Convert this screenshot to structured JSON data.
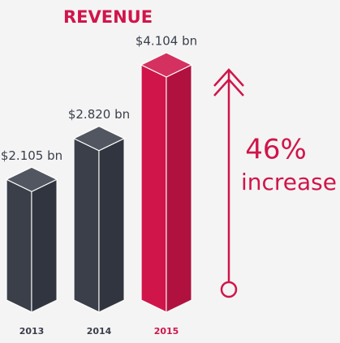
{
  "chart_data": {
    "type": "bar",
    "title": "REVENUE",
    "categories": [
      "2013",
      "2014",
      "2015"
    ],
    "values": [
      2.105,
      2.82,
      4.104
    ],
    "value_labels": [
      "$2.105 bn",
      "$2.820 bn",
      "$4.104 bn"
    ],
    "colors": [
      "#3a3f4a",
      "#3a3f4a",
      "#d0154a"
    ],
    "annotations": [
      "46%",
      "increase"
    ]
  }
}
